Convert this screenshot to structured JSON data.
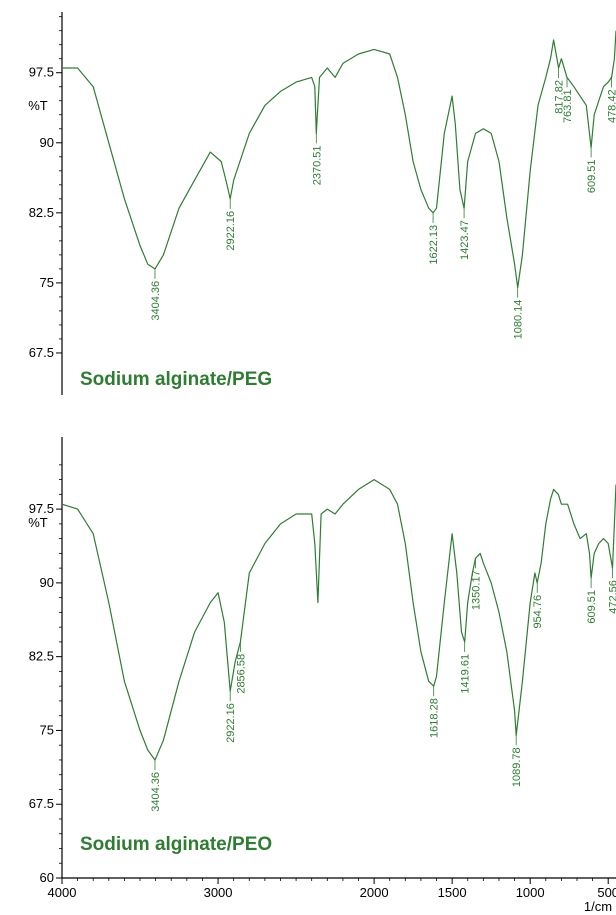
{
  "chart_data": [
    {
      "type": "line",
      "title": "Sodium alginate/PEG",
      "xlabel": "1/cm",
      "ylabel": "%T",
      "xlim": [
        4000,
        450
      ],
      "ylim": [
        63,
        104
      ],
      "y_ticks": [
        97.5,
        90,
        82.5,
        75,
        67.5
      ],
      "x": [
        4000,
        3900,
        3800,
        3700,
        3600,
        3500,
        3450,
        3404.36,
        3350,
        3250,
        3150,
        3050,
        2980,
        2950,
        2922.16,
        2900,
        2800,
        2700,
        2600,
        2500,
        2400,
        2380,
        2370.51,
        2350,
        2300,
        2250,
        2200,
        2100,
        2000,
        1900,
        1850,
        1800,
        1750,
        1700,
        1650,
        1622.13,
        1600,
        1550,
        1500,
        1480,
        1450,
        1423.47,
        1400,
        1350,
        1300,
        1250,
        1200,
        1150,
        1100,
        1080.14,
        1050,
        1000,
        950,
        900,
        870,
        850,
        817.82,
        800,
        763.81,
        720,
        680,
        640,
        620,
        609.51,
        590,
        560,
        530,
        500,
        478.42,
        460,
        450
      ],
      "y": [
        98,
        98,
        96,
        90,
        84,
        79,
        77,
        76.5,
        78,
        83,
        86,
        89,
        88,
        86,
        84,
        86,
        91,
        94,
        95.5,
        96.5,
        97,
        96,
        91,
        97,
        98,
        97,
        98.5,
        99.5,
        100,
        99.5,
        97,
        93,
        88,
        85,
        83,
        82.5,
        83,
        91,
        95,
        92,
        85,
        83,
        88,
        91,
        91.5,
        91,
        88,
        82,
        77,
        74.5,
        78,
        87,
        94,
        97,
        99,
        101,
        98,
        99,
        97,
        96,
        95,
        94,
        91,
        89.5,
        93,
        94.5,
        96,
        96.5,
        97,
        99,
        102
      ],
      "peaks": [
        {
          "x": 3404.36,
          "y": 76.5,
          "label": "3404.36"
        },
        {
          "x": 2922.16,
          "y": 84,
          "label": "2922.16"
        },
        {
          "x": 2370.51,
          "y": 91,
          "label": "2370.51"
        },
        {
          "x": 1622.13,
          "y": 82.5,
          "label": "1622.13"
        },
        {
          "x": 1423.47,
          "y": 83,
          "label": "1423.47"
        },
        {
          "x": 1080.14,
          "y": 74.5,
          "label": "1080.14"
        },
        {
          "x": 817.82,
          "y": 98,
          "label": "817.82"
        },
        {
          "x": 763.81,
          "y": 97,
          "label": "763.81"
        },
        {
          "x": 609.51,
          "y": 89.5,
          "label": "609.51"
        },
        {
          "x": 478.42,
          "y": 97,
          "label": "478.42"
        }
      ],
      "color": "#2e7d32"
    },
    {
      "type": "line",
      "title": "Sodium alginate/PEO",
      "xlabel": "1/cm",
      "ylabel": "%T",
      "xlim": [
        4000,
        450
      ],
      "ylim": [
        60,
        103
      ],
      "y_ticks": [
        97.5,
        90,
        82.5,
        75,
        67.5,
        60
      ],
      "x_ticks": [
        4000,
        3000,
        2000,
        1500,
        1000,
        500
      ],
      "x": [
        4000,
        3900,
        3800,
        3700,
        3600,
        3500,
        3450,
        3404.36,
        3350,
        3250,
        3150,
        3050,
        3000,
        2960,
        2922.16,
        2890,
        2856.58,
        2800,
        2700,
        2600,
        2500,
        2400,
        2380,
        2360,
        2340,
        2300,
        2250,
        2200,
        2100,
        2000,
        1900,
        1850,
        1800,
        1750,
        1700,
        1650,
        1618.28,
        1600,
        1550,
        1500,
        1470,
        1440,
        1419.61,
        1400,
        1370,
        1350.17,
        1320,
        1300,
        1250,
        1200,
        1150,
        1100,
        1089.78,
        1050,
        1000,
        970,
        954.76,
        930,
        900,
        870,
        850,
        820,
        800,
        760,
        720,
        680,
        640,
        620,
        609.51,
        590,
        560,
        530,
        500,
        472.56,
        460,
        450
      ],
      "y": [
        98,
        97.5,
        95,
        88,
        80,
        75,
        73,
        72,
        74,
        80,
        85,
        88,
        89,
        86,
        79,
        82,
        84,
        91,
        94,
        96,
        97,
        97,
        94,
        88,
        97,
        97.5,
        97,
        98,
        99.5,
        100.5,
        99.5,
        98,
        94,
        88,
        83,
        80,
        79.5,
        80.5,
        88,
        95,
        91,
        85,
        84,
        88,
        91,
        92.5,
        93,
        92,
        90,
        87,
        83,
        77,
        74.5,
        80,
        88,
        91,
        90,
        92,
        96,
        98.5,
        99.5,
        99,
        98,
        98,
        96,
        94.5,
        95,
        93,
        90.5,
        93,
        94,
        94.5,
        94,
        91.5,
        96,
        100
      ],
      "peaks": [
        {
          "x": 3404.36,
          "y": 72,
          "label": "3404.36"
        },
        {
          "x": 2922.16,
          "y": 79,
          "label": "2922.16"
        },
        {
          "x": 2856.58,
          "y": 84,
          "label": "2856.58"
        },
        {
          "x": 1618.28,
          "y": 79.5,
          "label": "1618.28"
        },
        {
          "x": 1419.61,
          "y": 84,
          "label": "1419.61"
        },
        {
          "x": 1350.17,
          "y": 92.5,
          "label": "1350.17"
        },
        {
          "x": 1089.78,
          "y": 74.5,
          "label": "1089.78"
        },
        {
          "x": 954.76,
          "y": 90,
          "label": "954.76"
        },
        {
          "x": 609.51,
          "y": 90.5,
          "label": "609.51"
        },
        {
          "x": 472.56,
          "y": 91.5,
          "label": "472.56"
        }
      ],
      "color": "#2e7d32"
    }
  ],
  "colors": {
    "spectrum": "#2e7d32",
    "title": "#2e7d32",
    "axis": "#000000"
  }
}
